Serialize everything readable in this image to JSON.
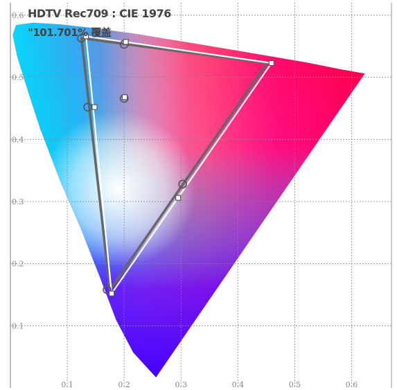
{
  "chart_data": {
    "type": "scatter",
    "title": "HDTV Rec709 : CIE 1976",
    "subtitle": "\"101.701% 覆盖",
    "xlabel": "",
    "ylabel": "",
    "xlim": [
      0.0,
      0.67
    ],
    "ylim": [
      0.0,
      0.62
    ],
    "grid": true,
    "x_ticks": [
      "0.1",
      "0.2",
      "0.3",
      "0.4",
      "0.5",
      "0.6"
    ],
    "y_ticks": [
      "0.1",
      "0.2",
      "0.3",
      "0.4",
      "0.5",
      "0.6"
    ],
    "locus": [
      [
        0.256,
        0.017
      ],
      [
        0.216,
        0.057
      ],
      [
        0.186,
        0.109
      ],
      [
        0.157,
        0.179
      ],
      [
        0.124,
        0.256
      ],
      [
        0.088,
        0.332
      ],
      [
        0.052,
        0.418
      ],
      [
        0.03,
        0.48
      ],
      [
        0.012,
        0.533
      ],
      [
        0.004,
        0.568
      ],
      [
        0.01,
        0.584
      ],
      [
        0.04,
        0.588
      ],
      [
        0.09,
        0.585
      ],
      [
        0.14,
        0.58
      ],
      [
        0.22,
        0.57
      ],
      [
        0.32,
        0.555
      ],
      [
        0.43,
        0.538
      ],
      [
        0.52,
        0.524
      ],
      [
        0.58,
        0.513
      ],
      [
        0.623,
        0.506
      ]
    ],
    "series": [
      {
        "name": "",
        "points": [
          [
            0.451,
            0.523
          ],
          [
            0.125,
            0.563
          ],
          [
            0.175,
            0.158
          ],
          [
            0.451,
            0.523
          ]
        ]
      },
      {
        "name": "",
        "points": [
          [
            0.459,
            0.523
          ],
          [
            0.133,
            0.566
          ],
          [
            0.178,
            0.152
          ],
          [
            0.459,
            0.523
          ]
        ]
      }
    ],
    "markers": {
      "circles": [
        [
          0.125,
          0.563
        ],
        [
          0.2,
          0.553
        ],
        [
          0.136,
          0.452
        ],
        [
          0.2,
          0.466
        ],
        [
          0.303,
          0.328
        ],
        [
          0.17,
          0.158
        ]
      ],
      "squares": [
        [
          0.133,
          0.566
        ],
        [
          0.203,
          0.557
        ],
        [
          0.148,
          0.452
        ],
        [
          0.201,
          0.468
        ],
        [
          0.295,
          0.306
        ],
        [
          0.178,
          0.152
        ],
        [
          0.459,
          0.523
        ]
      ]
    },
    "colors": {
      "triangle_dark": "#666666",
      "triangle_light": "#ffffff",
      "grid": "#888888"
    }
  }
}
